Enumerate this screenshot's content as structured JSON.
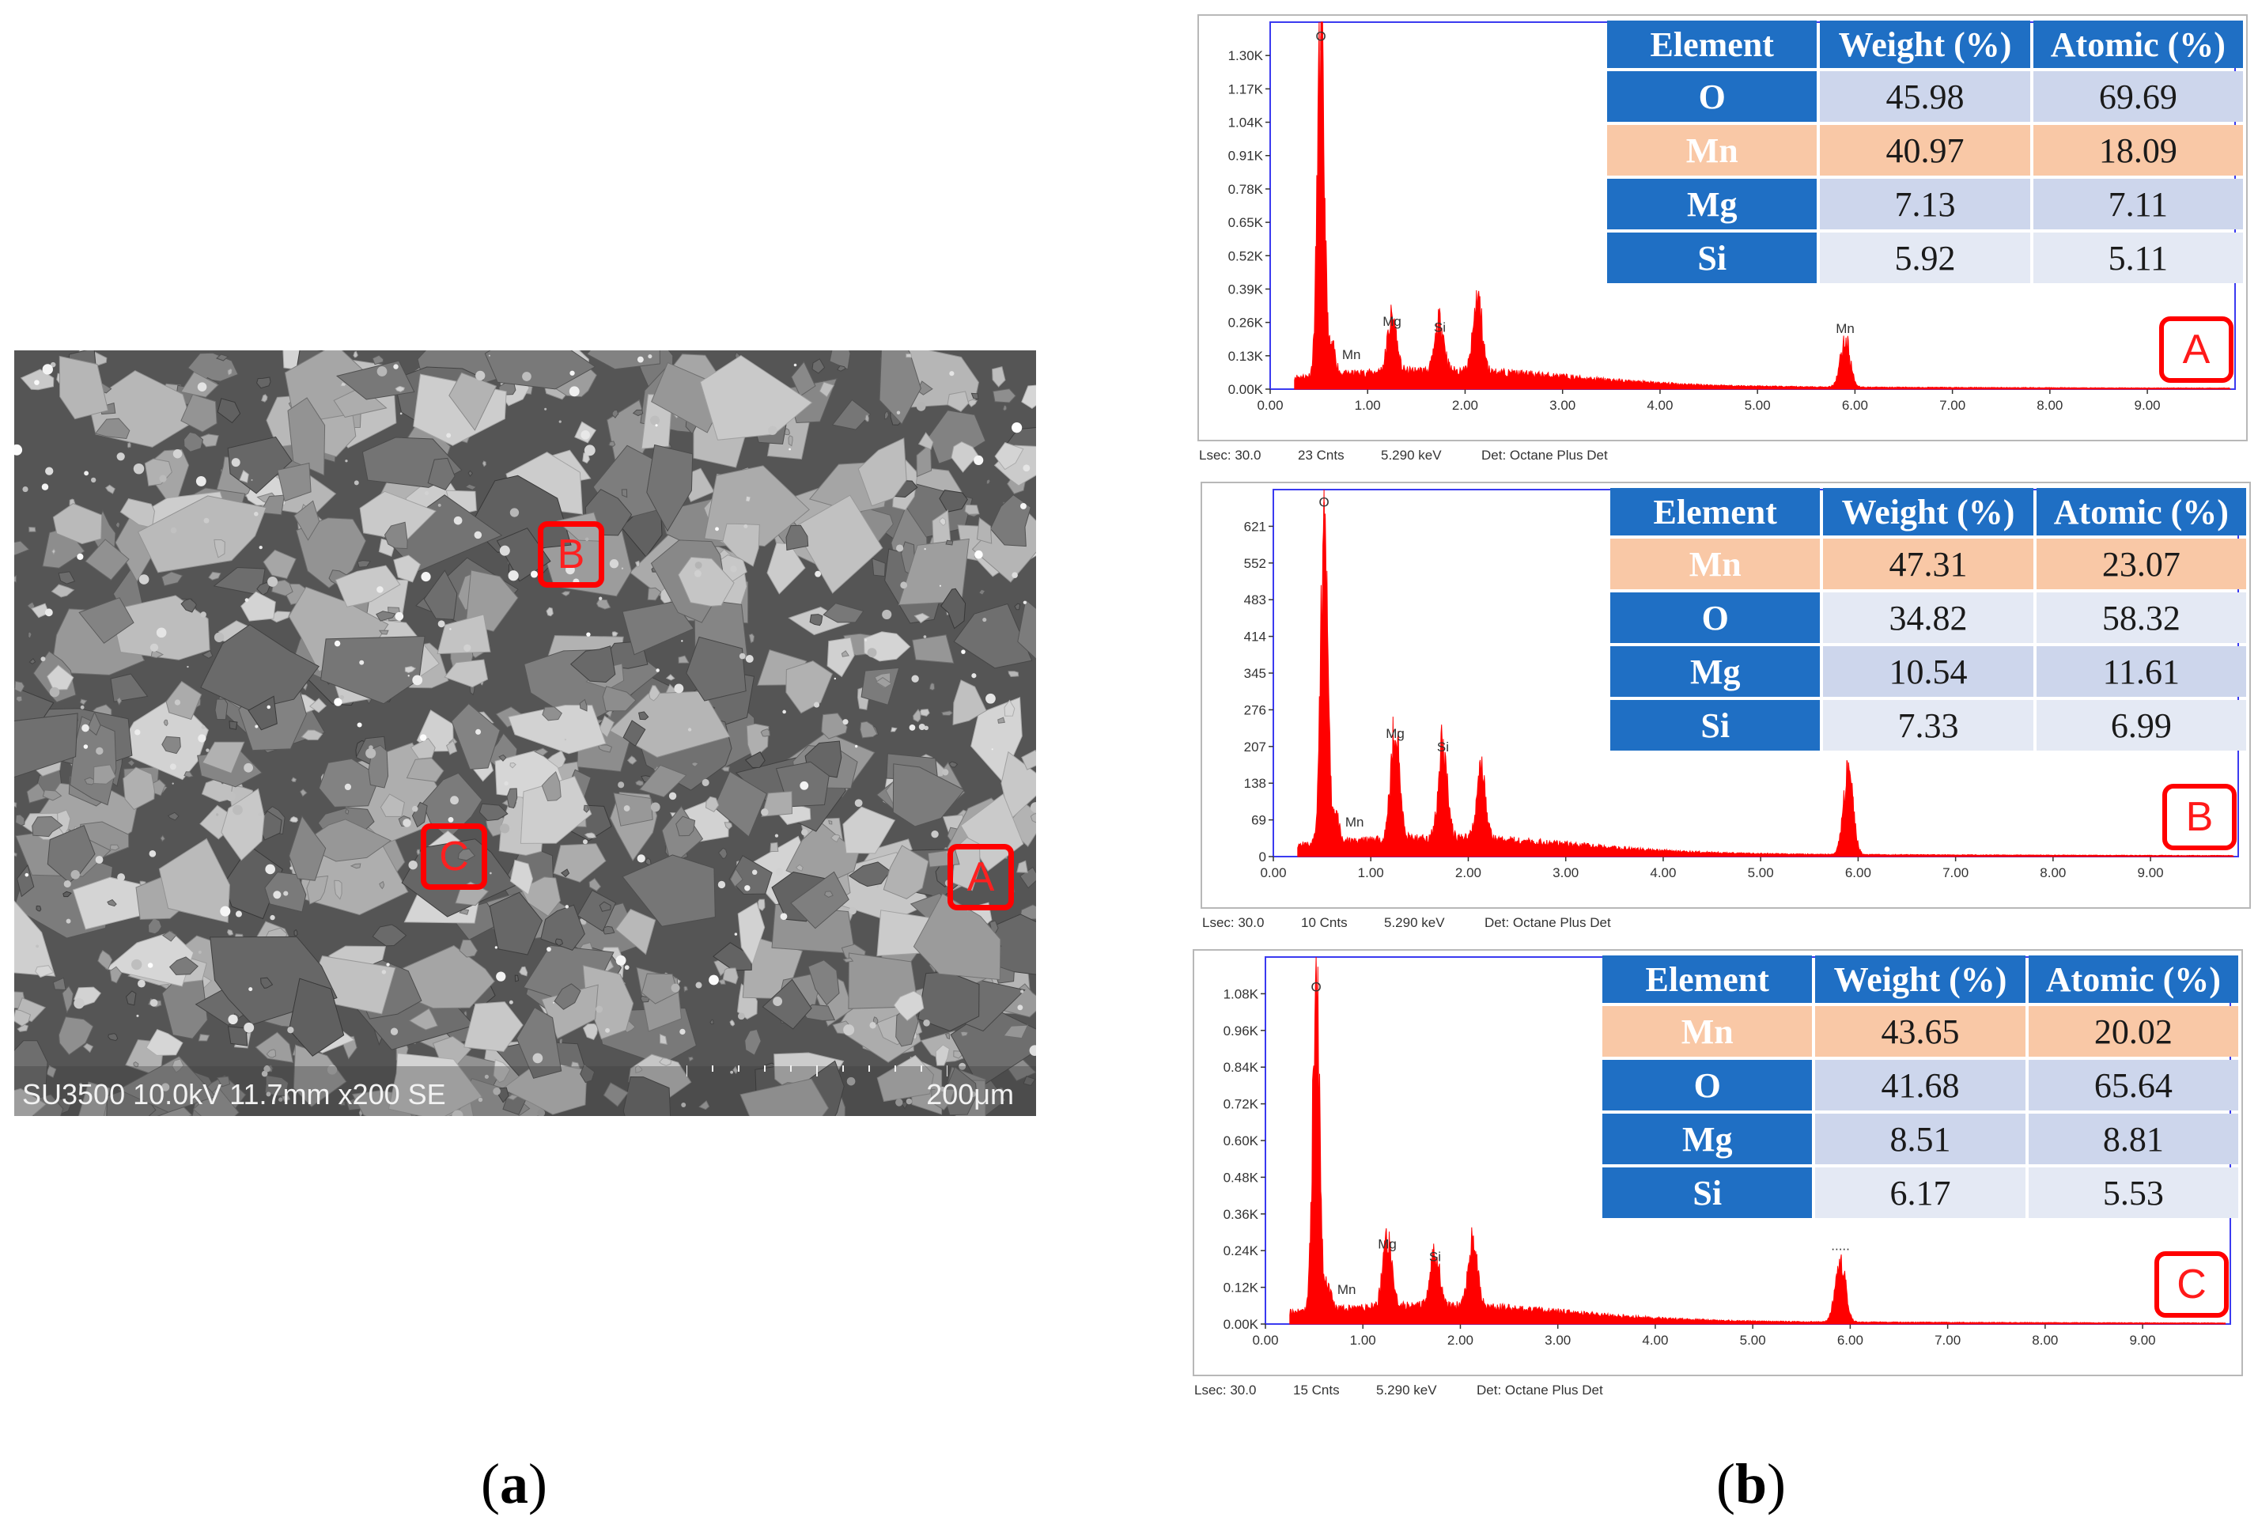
{
  "figure": {
    "panel_a_caption": {
      "open": "(",
      "letter": "a",
      "close": ")"
    },
    "panel_b_caption": {
      "open": "(",
      "letter": "b",
      "close": ")"
    }
  },
  "sem": {
    "info": "SU3500 10.0kV 11.7mm x200 SE",
    "scale_label": "200μm",
    "markers": [
      "A",
      "B",
      "C"
    ]
  },
  "table_headers": [
    "Element",
    "Weight (%)",
    "Atomic (%)"
  ],
  "colors": {
    "spectrum": "#ff0000",
    "plot_frame": "#3a3af0",
    "header_blue": "#1f6fc4",
    "row_peach": "#f9c8a6",
    "row_blue": "#cdd6ec",
    "row_light": "#e4e9f4",
    "marker_red": "#ff0000"
  },
  "chart_data": [
    {
      "type": "line",
      "spot": "A",
      "xlabel": "",
      "ylabel": "",
      "xlim": [
        0,
        9.9
      ],
      "x_ticks": [
        "0.00",
        "1.00",
        "2.00",
        "3.00",
        "4.00",
        "5.00",
        "6.00",
        "7.00",
        "8.00",
        "9.00"
      ],
      "y_ticks": [
        "0.00K",
        "0.13K",
        "0.26K",
        "0.39K",
        "0.52K",
        "0.65K",
        "0.78K",
        "0.91K",
        "1.04K",
        "1.17K",
        "1.30K"
      ],
      "ylim": [
        0,
        1300
      ],
      "peaks": [
        {
          "label": "O",
          "keV": 0.52,
          "counts": 1200
        },
        {
          "label": "Mn",
          "keV": 0.64,
          "counts": 90
        },
        {
          "label": "Mg",
          "keV": 1.25,
          "counts": 190
        },
        {
          "label": "Si",
          "keV": 1.74,
          "counts": 170
        },
        {
          "label": "",
          "keV": 2.13,
          "counts": 255
        },
        {
          "label": "Mn",
          "keV": 5.9,
          "counts": 165
        }
      ],
      "table": [
        {
          "element": "O",
          "weight": "45.98",
          "atomic": "69.69",
          "style": "blue"
        },
        {
          "element": "Mn",
          "weight": "40.97",
          "atomic": "18.09",
          "style": "peach"
        },
        {
          "element": "Mg",
          "weight": "7.13",
          "atomic": "7.11",
          "style": "blue"
        },
        {
          "element": "Si",
          "weight": "5.92",
          "atomic": "5.11",
          "style": "light"
        }
      ],
      "footer": {
        "lsec": "Lsec: 30.0",
        "cnts": "23 Cnts",
        "kev": "5.290 keV",
        "det": "Det: Octane Plus Det"
      }
    },
    {
      "type": "line",
      "spot": "B",
      "xlabel": "",
      "ylabel": "",
      "xlim": [
        0,
        9.9
      ],
      "x_ticks": [
        "0.00",
        "1.00",
        "2.00",
        "3.00",
        "4.00",
        "5.00",
        "6.00",
        "7.00",
        "8.00",
        "9.00"
      ],
      "y_ticks": [
        "0",
        "69",
        "138",
        "207",
        "276",
        "345",
        "414",
        "483",
        "552",
        "621"
      ],
      "ylim": [
        0,
        690
      ],
      "peaks": [
        {
          "label": "O",
          "keV": 0.52,
          "counts": 640
        },
        {
          "label": "Mn",
          "keV": 0.64,
          "counts": 50
        },
        {
          "label": "Mg",
          "keV": 1.25,
          "counts": 205
        },
        {
          "label": "Si",
          "keV": 1.74,
          "counts": 180
        },
        {
          "label": "",
          "keV": 2.13,
          "counts": 125
        },
        {
          "label": "",
          "keV": 5.9,
          "counts": 150
        }
      ],
      "table": [
        {
          "element": "Mn",
          "weight": "47.31",
          "atomic": "23.07",
          "style": "peach"
        },
        {
          "element": "O",
          "weight": "34.82",
          "atomic": "58.32",
          "style": "light"
        },
        {
          "element": "Mg",
          "weight": "10.54",
          "atomic": "11.61",
          "style": "blue"
        },
        {
          "element": "Si",
          "weight": "7.33",
          "atomic": "6.99",
          "style": "light"
        }
      ],
      "footer": {
        "lsec": "Lsec: 30.0",
        "cnts": "10 Cnts",
        "kev": "5.290 keV",
        "det": "Det: Octane Plus Det"
      }
    },
    {
      "type": "line",
      "spot": "C",
      "xlabel": "",
      "ylabel": "",
      "xlim": [
        0,
        9.9
      ],
      "x_ticks": [
        "0.00",
        "1.00",
        "2.00",
        "3.00",
        "4.00",
        "5.00",
        "6.00",
        "7.00",
        "8.00",
        "9.00"
      ],
      "y_ticks": [
        "0.00K",
        "0.12K",
        "0.24K",
        "0.36K",
        "0.48K",
        "0.60K",
        "0.72K",
        "0.84K",
        "0.96K",
        "1.08K"
      ],
      "ylim": [
        0,
        1170
      ],
      "peaks": [
        {
          "label": "O",
          "keV": 0.52,
          "counts": 1030
        },
        {
          "label": "Mn",
          "keV": 0.64,
          "counts": 80
        },
        {
          "label": "Mg",
          "keV": 1.25,
          "counts": 210
        },
        {
          "label": "Si",
          "keV": 1.74,
          "counts": 170
        },
        {
          "label": "",
          "keV": 2.13,
          "counts": 215
        },
        {
          "label": ".....",
          "keV": 5.9,
          "counts": 205
        }
      ],
      "table": [
        {
          "element": "Mn",
          "weight": "43.65",
          "atomic": "20.02",
          "style": "peach"
        },
        {
          "element": "O",
          "weight": "41.68",
          "atomic": "65.64",
          "style": "blue"
        },
        {
          "element": "Mg",
          "weight": "8.51",
          "atomic": "8.81",
          "style": "blue"
        },
        {
          "element": "Si",
          "weight": "6.17",
          "atomic": "5.53",
          "style": "light"
        }
      ],
      "footer": {
        "lsec": "Lsec: 30.0",
        "cnts": "15 Cnts",
        "kev": "5.290 keV",
        "det": "Det: Octane Plus Det"
      }
    }
  ]
}
